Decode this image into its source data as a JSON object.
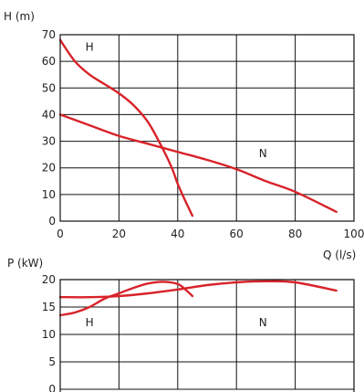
{
  "colors": {
    "curve": "#d8232a",
    "grid": "#111111",
    "text": "#222222"
  },
  "chart_data": [
    {
      "type": "line",
      "ylabel": "H (m)",
      "xlabel": "Q (l/s)",
      "xlim": [
        0,
        100
      ],
      "ylim": [
        0,
        70
      ],
      "x_ticks": [
        "0",
        "20",
        "40",
        "60",
        "80",
        "100"
      ],
      "y_ticks": [
        "0",
        "10",
        "20",
        "30",
        "40",
        "50",
        "60",
        "70"
      ],
      "grid": true,
      "series": [
        {
          "name": "H",
          "x": [
            0,
            5,
            10,
            15,
            20,
            25,
            30,
            35,
            38,
            40,
            42,
            45
          ],
          "y": [
            68,
            60,
            55,
            51.5,
            48,
            43.5,
            37,
            27,
            20,
            14,
            9,
            2
          ]
        },
        {
          "name": "N",
          "x": [
            0,
            10,
            20,
            30,
            40,
            50,
            60,
            70,
            80,
            94
          ],
          "y": [
            40,
            36,
            32,
            29,
            26,
            23,
            19.5,
            15,
            11,
            3.5
          ]
        }
      ],
      "labels": [
        {
          "text": "H",
          "x": 10,
          "y": 64
        },
        {
          "text": "N",
          "x": 69,
          "y": 24
        }
      ]
    },
    {
      "type": "line",
      "ylabel": "P (kW)",
      "xlim": [
        0,
        100
      ],
      "ylim": [
        0,
        20
      ],
      "y_ticks": [
        "0",
        "5",
        "10",
        "15",
        "20"
      ],
      "grid": true,
      "series": [
        {
          "name": "H",
          "x": [
            0,
            5,
            10,
            15,
            20,
            25,
            30,
            35,
            40,
            43,
            45
          ],
          "y": [
            13.5,
            14,
            15,
            16.5,
            17.5,
            18.5,
            19.3,
            19.6,
            19.2,
            18,
            17
          ]
        },
        {
          "name": "N",
          "x": [
            0,
            10,
            20,
            30,
            40,
            50,
            60,
            70,
            80,
            94
          ],
          "y": [
            16.8,
            16.8,
            17,
            17.5,
            18.2,
            19,
            19.5,
            19.7,
            19.5,
            18
          ]
        }
      ],
      "labels": [
        {
          "text": "H",
          "x": 10,
          "y": 11.5
        },
        {
          "text": "N",
          "x": 69,
          "y": 11.5
        }
      ]
    }
  ]
}
